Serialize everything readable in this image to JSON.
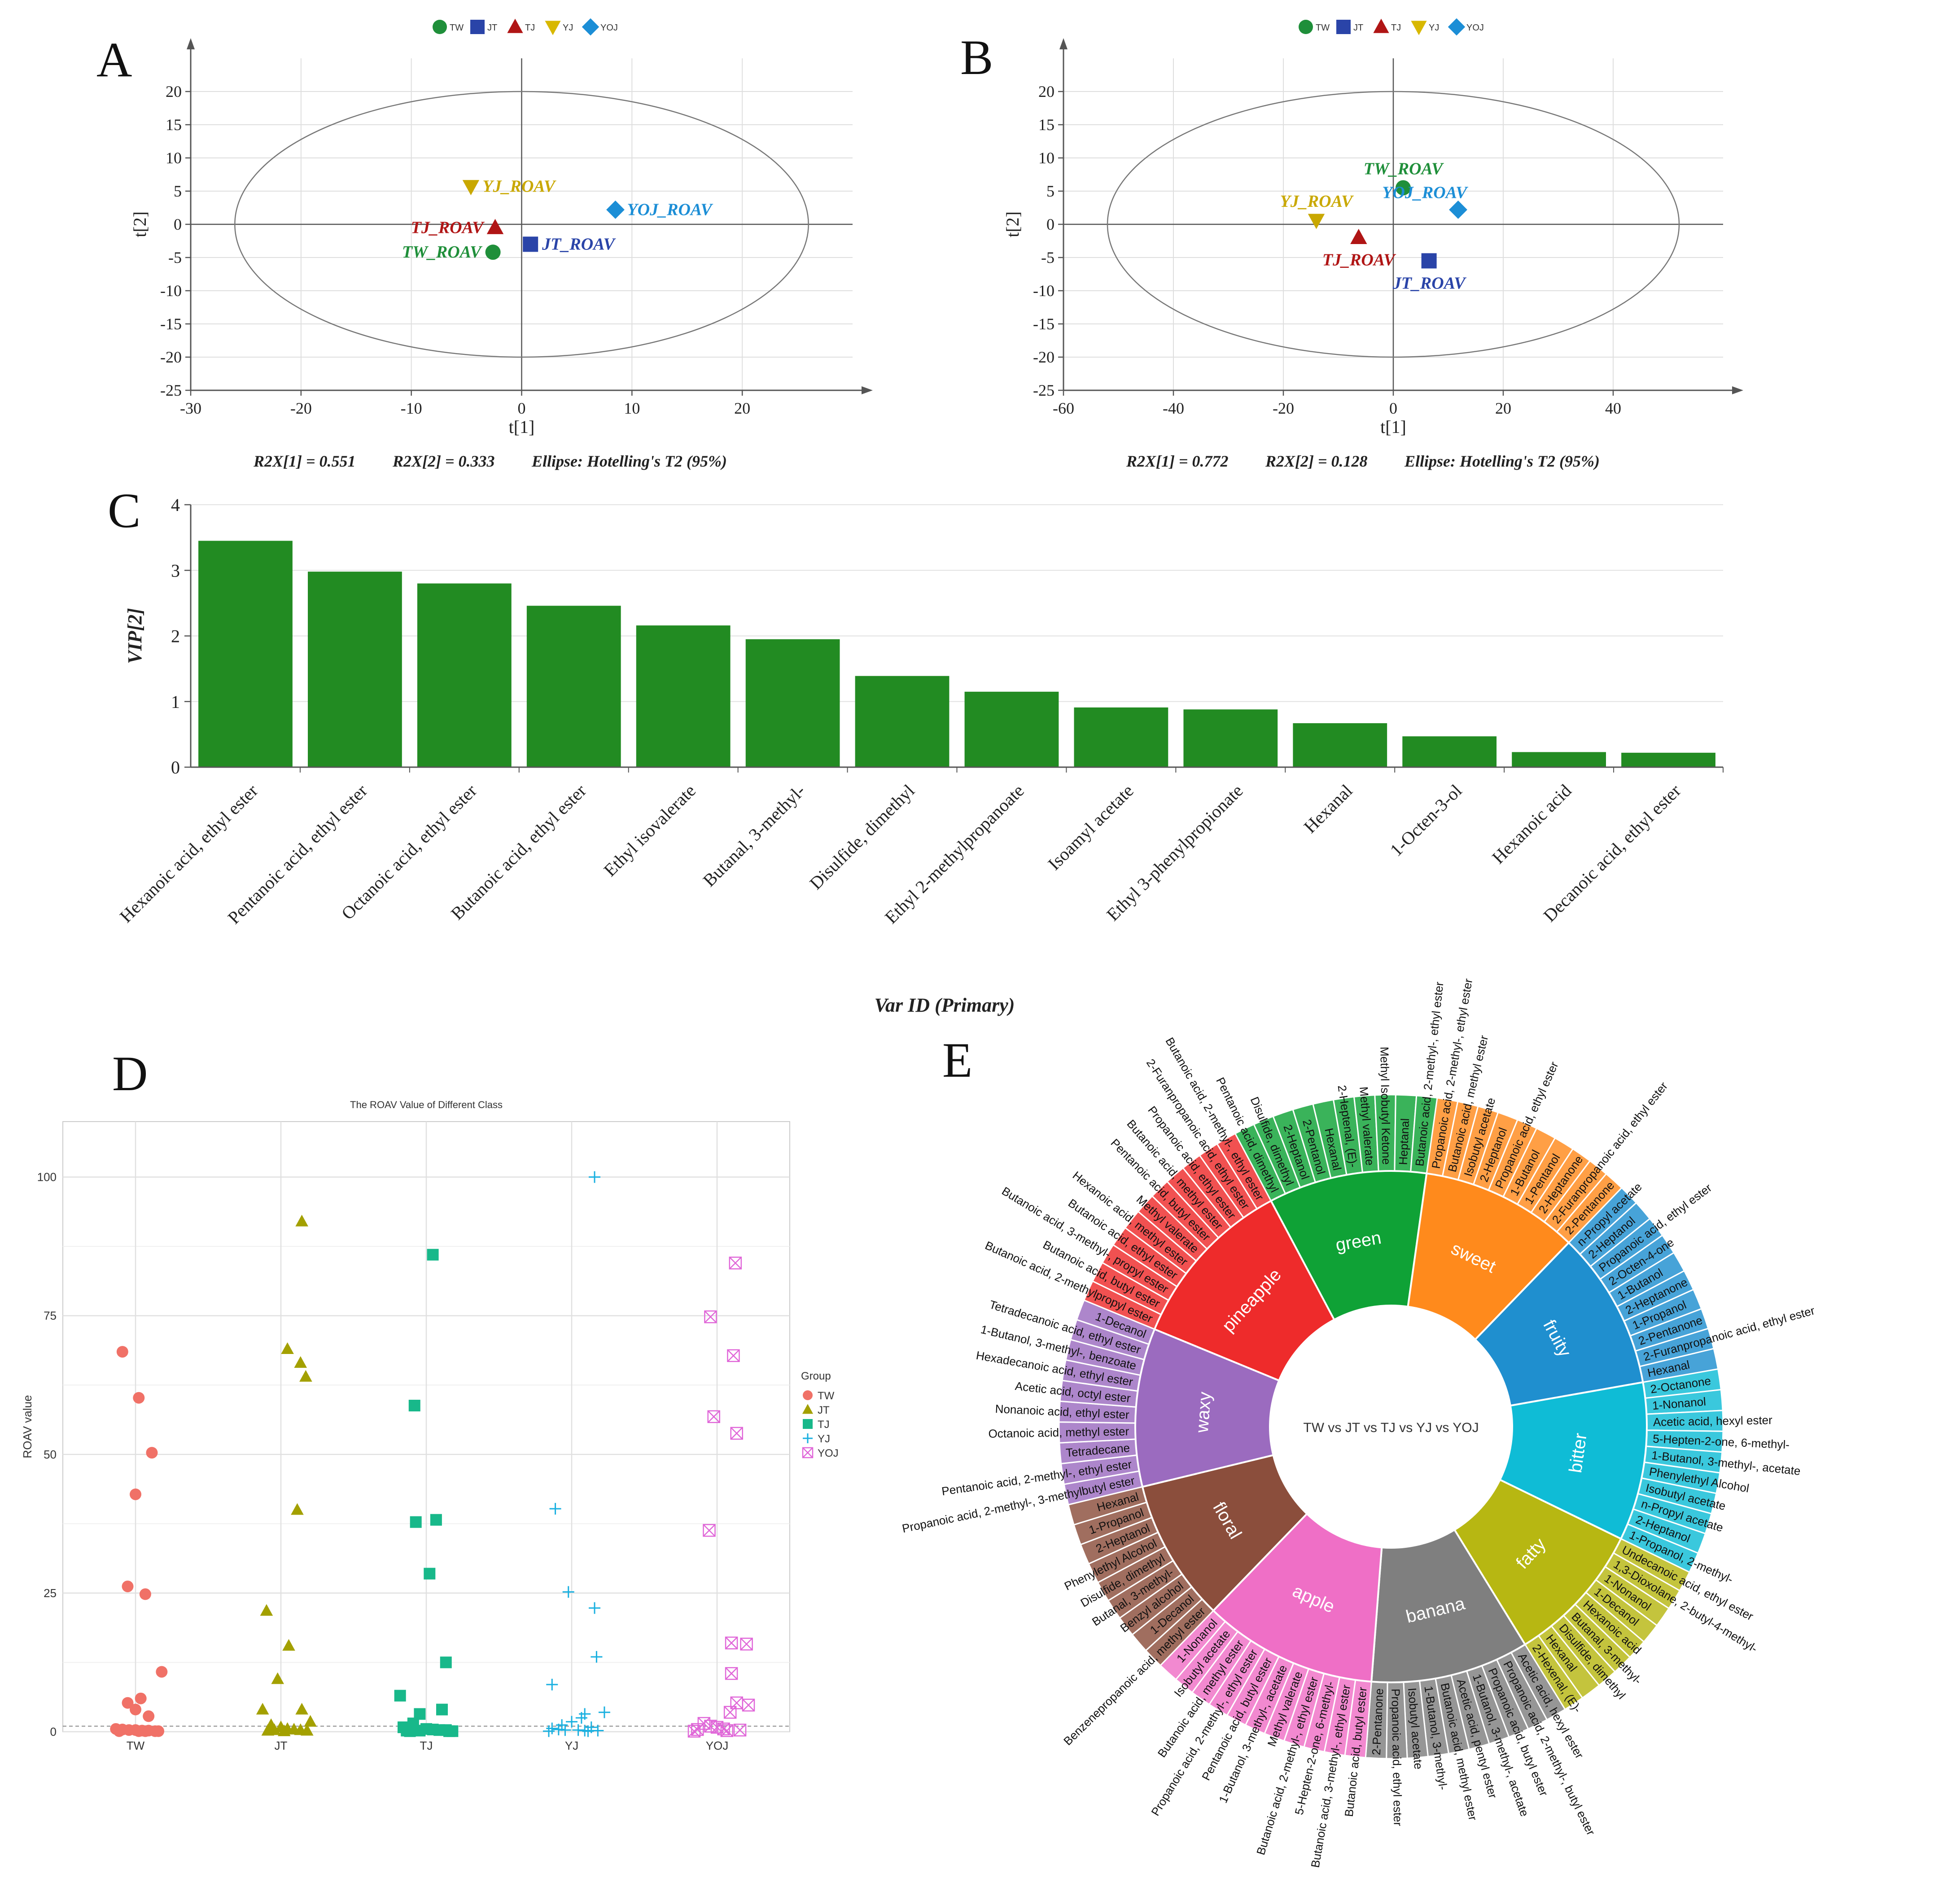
{
  "panels": {
    "A": "A",
    "B": "B",
    "C": "C",
    "D": "D",
    "E": "E"
  },
  "chart_data": [
    {
      "id": "A",
      "type": "scatter",
      "xlabel": "t[1]",
      "ylabel": "t[2]",
      "xlim": [
        -30,
        30
      ],
      "ylim": [
        -25,
        25
      ],
      "xticks": [
        -30,
        -20,
        -10,
        0,
        10,
        20
      ],
      "yticks": [
        20,
        15,
        10,
        5,
        0,
        -5,
        -10,
        -15,
        -20,
        -25
      ],
      "ellipse": {
        "rx": 26,
        "ry": 20
      },
      "stats": [
        "R2X[1] = 0.551",
        "R2X[2] = 0.333",
        "Ellipse: Hotelling's T2 (95%)"
      ],
      "legend": [
        {
          "name": "TW",
          "shape": "circle",
          "color": "#1f8f3a"
        },
        {
          "name": "JT",
          "shape": "square",
          "color": "#2a44a8"
        },
        {
          "name": "TJ",
          "shape": "triangle",
          "color": "#b01515"
        },
        {
          "name": "YJ",
          "shape": "triangle-down",
          "color": "#d8b800"
        },
        {
          "name": "YOJ",
          "shape": "diamond",
          "color": "#1c8ed6"
        }
      ],
      "points": [
        {
          "label": "TW_ROAV",
          "x": -2.6,
          "y": -4.2,
          "shape": "circle",
          "color": "#1f8f3a",
          "side": "left"
        },
        {
          "label": "JT_ROAV",
          "x": 0.8,
          "y": -3.0,
          "shape": "square",
          "color": "#2a44a8",
          "side": "right"
        },
        {
          "label": "TJ_ROAV",
          "x": -2.4,
          "y": -0.5,
          "shape": "triangle",
          "color": "#b01515",
          "side": "left"
        },
        {
          "label": "YJ_ROAV",
          "x": -4.6,
          "y": 5.7,
          "shape": "triangle-down",
          "color": "#c9a800",
          "side": "right"
        },
        {
          "label": "YOJ_ROAV",
          "x": 8.5,
          "y": 2.2,
          "shape": "diamond",
          "color": "#1c8ed6",
          "side": "right"
        }
      ]
    },
    {
      "id": "B",
      "type": "scatter",
      "xlabel": "t[1]",
      "ylabel": "t[2]",
      "xlim": [
        -60,
        60
      ],
      "ylim": [
        -25,
        25
      ],
      "xticks": [
        -60,
        -40,
        -20,
        0,
        20,
        40
      ],
      "yticks": [
        20,
        15,
        10,
        5,
        0,
        -5,
        -10,
        -15,
        -20,
        -25
      ],
      "ellipse": {
        "rx": 52,
        "ry": 20
      },
      "stats": [
        "R2X[1] = 0.772",
        "R2X[2] = 0.128",
        "Ellipse: Hotelling's T2 (95%)"
      ],
      "legend": [
        {
          "name": "TW",
          "shape": "circle",
          "color": "#1f8f3a"
        },
        {
          "name": "JT",
          "shape": "square",
          "color": "#2a44a8"
        },
        {
          "name": "TJ",
          "shape": "triangle",
          "color": "#b01515"
        },
        {
          "name": "YJ",
          "shape": "triangle-down",
          "color": "#d8b800"
        },
        {
          "name": "YOJ",
          "shape": "diamond",
          "color": "#1c8ed6"
        }
      ],
      "points": [
        {
          "label": "TW_ROAV",
          "x": 1.8,
          "y": 5.5,
          "shape": "circle",
          "color": "#1f8f3a",
          "side": "above"
        },
        {
          "label": "JT_ROAV",
          "x": 6.5,
          "y": -5.5,
          "shape": "square",
          "color": "#2a44a8",
          "side": "below"
        },
        {
          "label": "TJ_ROAV",
          "x": -6.3,
          "y": -2.0,
          "shape": "triangle",
          "color": "#b01515",
          "side": "below"
        },
        {
          "label": "YJ_ROAV",
          "x": -14.0,
          "y": 0.6,
          "shape": "triangle-down",
          "color": "#c9a800",
          "side": "above"
        },
        {
          "label": "YOJ_ROAV",
          "x": 11.8,
          "y": 2.2,
          "shape": "diamond",
          "color": "#1c8ed6",
          "side": "aboveleft"
        }
      ]
    },
    {
      "id": "C",
      "type": "bar",
      "ylabel": "VIP[2]",
      "xlabel": "Var ID (Primary)",
      "ylim": [
        0,
        4
      ],
      "yticks": [
        0,
        1,
        2,
        3,
        4
      ],
      "color": "#228b22",
      "categories": [
        "Hexanoic acid, ethyl ester",
        "Pentanoic acid, ethyl ester",
        "Octanoic acid, ethyl ester",
        "Butanoic acid, ethyl ester",
        "Ethyl isovalerate",
        "Butanal, 3-methyl-",
        "Disulfide, dimethyl",
        "Ethyl 2-methylpropanoate",
        "Isoamyl acetate",
        "Ethyl 3-phenylpropionate",
        "Hexanal",
        "1-Octen-3-ol",
        "Hexanoic acid",
        "Decanoic acid, ethyl ester"
      ],
      "values": [
        3.45,
        2.98,
        2.8,
        2.46,
        2.16,
        1.95,
        1.39,
        1.15,
        0.91,
        0.88,
        0.67,
        0.47,
        0.23,
        0.22
      ]
    },
    {
      "id": "D",
      "type": "scatter",
      "title": "The ROAV Value of Different Class",
      "ylabel": "ROAV value",
      "ylim": [
        0,
        110
      ],
      "yticks": [
        0,
        25,
        50,
        75,
        100
      ],
      "categories": [
        "TW",
        "JT",
        "TJ",
        "YJ",
        "YOJ"
      ],
      "legend_title": "Group",
      "series": [
        {
          "name": "TW",
          "shape": "circle",
          "color": "#f07167",
          "values": [
            68.5,
            60.2,
            50.3,
            42.8,
            26.2,
            24.8,
            10.8,
            6.0,
            5.2,
            4.0,
            2.8,
            0.5,
            0.4,
            0.3,
            0.3,
            0.2,
            0.2,
            0.1,
            0.1,
            0.1,
            0.1,
            0.1
          ],
          "offsets": [
            -0.2,
            0.05,
            0.25,
            0.0,
            -0.12,
            0.15,
            0.4,
            0.08,
            -0.12,
            0.0,
            0.2,
            -0.3,
            -0.2,
            -0.1,
            0.0,
            0.1,
            0.2,
            0.3,
            -0.25,
            0.35,
            0.05,
            0.15
          ]
        },
        {
          "name": "JT",
          "shape": "triangle",
          "color": "#a3a000",
          "values": [
            92.0,
            69.0,
            66.5,
            64.0,
            40.0,
            21.8,
            15.5,
            9.5,
            4.0,
            4.0,
            1.8,
            1.2,
            0.8,
            0.5,
            0.4,
            0.3,
            0.3,
            0.2,
            0.2,
            0.1
          ],
          "offsets": [
            0.32,
            0.1,
            0.3,
            0.38,
            0.25,
            -0.22,
            0.12,
            -0.05,
            -0.28,
            0.32,
            0.45,
            -0.15,
            0.0,
            0.1,
            0.2,
            -0.1,
            0.3,
            0.4,
            -0.2,
            0.05
          ]
        },
        {
          "name": "TJ",
          "shape": "square",
          "color": "#18b88a",
          "values": [
            86.0,
            58.8,
            38.2,
            37.8,
            28.5,
            12.5,
            6.5,
            4.0,
            3.2,
            1.5,
            0.8,
            0.5,
            0.4,
            0.3,
            0.3,
            0.2,
            0.2,
            0.1,
            0.1,
            0.1
          ],
          "offsets": [
            0.1,
            -0.18,
            0.15,
            -0.16,
            0.05,
            0.3,
            -0.4,
            0.24,
            -0.1,
            -0.2,
            -0.35,
            0.0,
            0.1,
            0.2,
            0.3,
            -0.3,
            -0.1,
            0.4,
            0.35,
            -0.25
          ]
        },
        {
          "name": "YJ",
          "shape": "plus",
          "color": "#1ab0e0",
          "values": [
            100.0,
            40.2,
            25.2,
            22.3,
            13.5,
            8.5,
            3.5,
            3.2,
            2.5,
            1.8,
            1.2,
            0.8,
            0.6,
            0.4,
            0.3,
            0.3,
            0.2,
            0.2,
            0.1,
            0.1
          ],
          "offsets": [
            0.35,
            -0.25,
            -0.05,
            0.35,
            0.38,
            -0.3,
            0.5,
            0.2,
            0.15,
            0.0,
            -0.15,
            0.3,
            -0.3,
            -0.2,
            -0.1,
            0.1,
            0.2,
            0.4,
            0.25,
            -0.35
          ]
        },
        {
          "name": "YOJ",
          "shape": "crossbox",
          "color": "#e066d8",
          "values": [
            84.5,
            74.8,
            67.8,
            56.8,
            53.8,
            36.3,
            16.0,
            15.8,
            10.5,
            5.2,
            4.8,
            3.5,
            1.5,
            1.0,
            0.8,
            0.5,
            0.4,
            0.3,
            0.2,
            0.1
          ],
          "offsets": [
            0.28,
            -0.1,
            0.25,
            -0.05,
            0.3,
            -0.12,
            0.22,
            0.45,
            0.22,
            0.3,
            0.48,
            0.2,
            -0.2,
            -0.1,
            0.0,
            0.1,
            -0.3,
            0.35,
            0.15,
            -0.35
          ]
        }
      ]
    },
    {
      "id": "E",
      "type": "sunburst",
      "center_label": "TW vs JT vs TJ vs YJ vs YOJ",
      "groups": [
        {
          "name": "green",
          "color": "#0fa236",
          "items": [
            "Pentanoic acid, dimethyl",
            "Disulfide, dimethyl",
            "2-Heptanol",
            "2-Pentanol",
            "Hexanal",
            "2-Heptenal, (E)-",
            "Methyl valerate",
            "Methyl Isobutyl Ketone",
            "Heptanal",
            "Butanoic acid, 2-methyl-, ethyl ester"
          ]
        },
        {
          "name": "sweet",
          "color": "#ff8a1c",
          "items": [
            "Propanoic acid, 2-methyl-, ethyl ester",
            "Butanoic acid, methyl ester",
            "Isobutyl acetate",
            "2-Heptanol",
            "Propanoic acid, ethyl ester",
            "1-Butanol",
            "1-Pentanol",
            "2-Heptanone",
            "2-Furanpropanoic acid, ethyl ester",
            "2-Pentanone"
          ]
        },
        {
          "name": "fruity",
          "color": "#1f8fcf",
          "items": [
            "n-Propyl acetate",
            "2-Heptanol",
            "Propanoic acid, ethyl ester",
            "2-Octen-4-one",
            "1-Butanol",
            "2-Heptanone",
            "1-Propanol",
            "2-Pentanone",
            "2-Furanpropanoic acid, ethyl ester",
            "Hexanal"
          ]
        },
        {
          "name": "bitter",
          "color": "#0fbcd6",
          "items": [
            "2-Octanone",
            "1-Nonanol",
            "Acetic acid, hexyl ester",
            "5-Hepten-2-one, 6-methyl-",
            "1-Butanol, 3-methyl-, acetate",
            "Phenylethyl Alcohol",
            "Isobutyl acetate",
            "n-Propyl acetate",
            "2-Heptanol",
            "1-Propanol, 2-methyl-"
          ]
        },
        {
          "name": "fatty",
          "color": "#b7b712",
          "items": [
            "Undecanoic acid, ethyl ester",
            "1,3-Dioxolane, 2-butyl-4-methyl-",
            "1-Nonanol",
            "1-Decanol",
            "Hexanoic acid",
            "Butanal, 3-methyl-",
            "Disulfide, dimethyl",
            "Hexanal",
            "2-Hexenal, (E)-"
          ]
        },
        {
          "name": "banana",
          "color": "#7f7f7f",
          "items": [
            "Acetic acid, hexyl ester",
            "Propanoic acid, 2-methyl-, butyl ester",
            "Propanoic acid, butyl ester",
            "1-Butanol, 3-methyl-, acetate",
            "Acetic acid, pentyl ester",
            "Butanoic acid, methyl ester",
            "1-Butanol, 3-methyl-",
            "Isobutyl acetate",
            "Propanoic acid, ethyl ester",
            "2-Pentanone"
          ]
        },
        {
          "name": "apple",
          "color": "#ef6fc6",
          "items": [
            "Butanoic acid, butyl ester",
            "Butanoic acid, 3-methyl-, ethyl ester",
            "5-Hepten-2-one, 6-methyl-",
            "Butanoic acid, 2-methyl-, ethyl ester",
            "Methyl valerate",
            "1-Butanol, 3-methyl-, acetate",
            "Pentanoic acid, butyl ester",
            "Propanoic acid, 2-methyl-, ethyl ester",
            "Butanoic acid, methyl ester",
            "Isobutyl acetate",
            "1-Nonanol"
          ]
        },
        {
          "name": "floral",
          "color": "#8b4e3c",
          "items": [
            "Benzenepropanoic acid, methyl ester",
            "1-Decanol",
            "Benzyl alcohol",
            "Butanal, 3-methyl-",
            "Disulfide, dimethyl",
            "Phenylethyl Alcohol",
            "2-Heptanol",
            "1-Propanol",
            "Hexanal"
          ]
        },
        {
          "name": "waxy",
          "color": "#9b6bbf",
          "items": [
            "Propanoic acid, 2-methyl-, 3-methylbutyl ester",
            "Pentanoic acid, 2-methyl-, ethyl ester",
            "Tetradecane",
            "Octanoic acid, methyl ester",
            "Nonanoic acid, ethyl ester",
            "Acetic acid, octyl ester",
            "Hexadecanoic acid, ethyl ester",
            "1-Butanol, 3-methyl-, benzoate",
            "Tetradecanoic acid, ethyl ester",
            "1-Decanol"
          ]
        },
        {
          "name": "pineapple",
          "color": "#ee2b2b",
          "items": [
            "Butanoic acid, 2-methylpropyl ester",
            "Butanoic acid, butyl ester",
            "Butanoic acid, 3-methyl-, propyl ester",
            "Butanoic acid, ethyl ester",
            "Hexanoic acid, methyl ester",
            "Methyl valerate",
            "Pentanoic acid, butyl ester",
            "Butanoic acid, methyl ester",
            "Propanoic acid, ethyl ester",
            "2-Furanpropanoic acid, ethyl ester",
            "Butanoic acid, 2-methyl-, ethyl ester"
          ]
        }
      ]
    }
  ]
}
